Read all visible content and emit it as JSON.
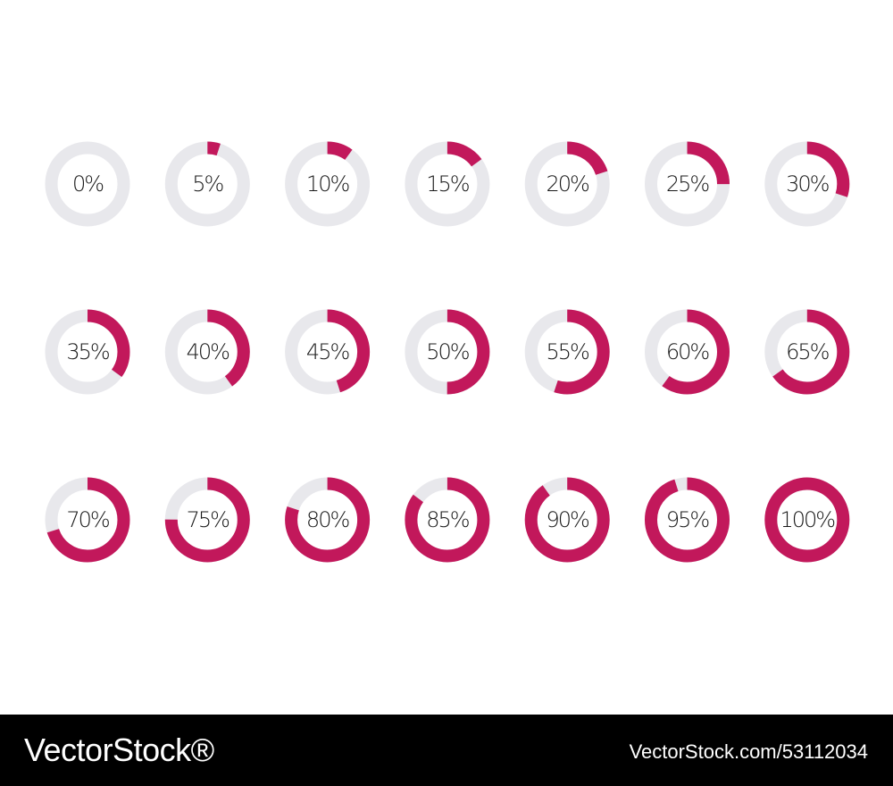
{
  "colors": {
    "progress": "#c2185b",
    "track": "#e8e8ec",
    "text": "#1a1a1a",
    "footer_bg": "#000000",
    "footer_text": "#ffffff"
  },
  "chart_data": {
    "type": "donut-progress",
    "title": "",
    "unit": "%",
    "values": [
      0,
      5,
      10,
      15,
      20,
      25,
      30,
      35,
      40,
      45,
      50,
      55,
      60,
      65,
      70,
      75,
      80,
      85,
      90,
      95,
      100
    ],
    "labels": [
      "0%",
      "5%",
      "10%",
      "15%",
      "20%",
      "25%",
      "30%",
      "35%",
      "40%",
      "45%",
      "50%",
      "55%",
      "60%",
      "65%",
      "70%",
      "75%",
      "80%",
      "85%",
      "90%",
      "95%",
      "100%"
    ],
    "grid": false,
    "legend": "none"
  },
  "footer": {
    "brand": "VectorStock®",
    "image_id": "VectorStock.com/53112034"
  }
}
